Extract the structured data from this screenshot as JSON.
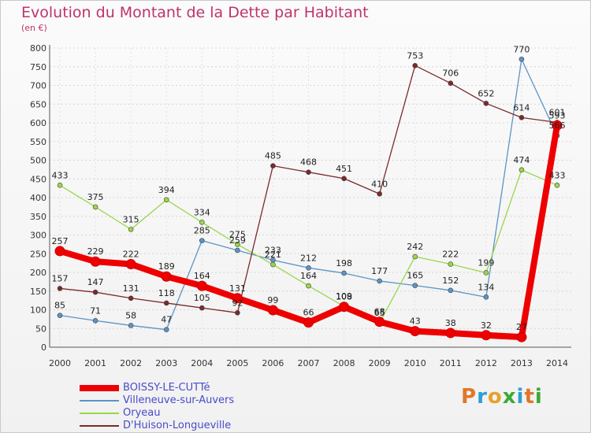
{
  "title": "Evolution du Montant de la Dette par Habitant",
  "subtitle": "(en €)",
  "logo": {
    "text": "Proxiti",
    "letter_colors": [
      "#e0762a",
      "#2a9fd6",
      "#e6a12c",
      "#3aaa35",
      "#2a9fd6",
      "#e0762a",
      "#3aaa35"
    ]
  },
  "chart_data": {
    "type": "line",
    "x": [
      "2000",
      "2001",
      "2002",
      "2003",
      "2004",
      "2005",
      "2006",
      "2007",
      "2008",
      "2009",
      "2010",
      "2011",
      "2012",
      "2013",
      "2014"
    ],
    "ylim": [
      0,
      800
    ],
    "yticks": [
      0,
      50,
      100,
      150,
      200,
      250,
      300,
      350,
      400,
      450,
      500,
      550,
      600,
      650,
      700,
      750,
      800
    ],
    "grid": true,
    "legend_position": "bottom-left",
    "series": [
      {
        "name": "BOISSY-LE-CUTTé",
        "color": "#ee0000",
        "values": [
          257,
          229,
          222,
          189,
          164,
          131,
          99,
          66,
          108,
          68,
          43,
          38,
          32,
          27,
          593
        ],
        "bold": true
      },
      {
        "name": "Villeneuve-sur-Auvers",
        "color": "#5b94c6",
        "values": [
          85,
          71,
          58,
          47,
          285,
          259,
          233,
          212,
          198,
          177,
          165,
          152,
          134,
          770,
          566
        ]
      },
      {
        "name": "Oryeau",
        "color": "#9ad64a",
        "values": [
          433,
          375,
          315,
          394,
          334,
          275,
          221,
          164,
          109,
          65,
          242,
          222,
          199,
          474,
          433
        ]
      },
      {
        "name": "D'Huison-Longueville",
        "color": "#7a2a2a",
        "values": [
          157,
          147,
          131,
          118,
          105,
          92,
          485,
          468,
          451,
          410,
          753,
          706,
          652,
          614,
          601
        ]
      }
    ]
  }
}
